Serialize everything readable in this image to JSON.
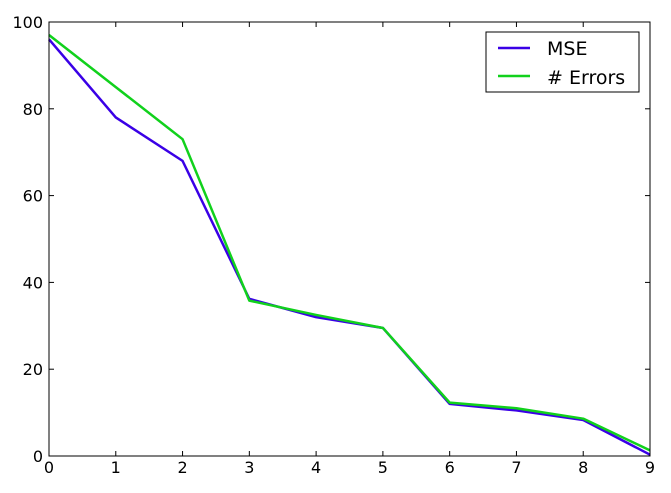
{
  "chart_data": {
    "type": "line",
    "title": "",
    "xlabel": "",
    "ylabel": "",
    "xlim": [
      0,
      9
    ],
    "ylim": [
      0,
      100
    ],
    "x": [
      0,
      1,
      2,
      3,
      4,
      5,
      6,
      7,
      8,
      9
    ],
    "xticks": [
      "0",
      "1",
      "2",
      "3",
      "4",
      "5",
      "6",
      "7",
      "8",
      "9"
    ],
    "yticks": [
      "0",
      "20",
      "40",
      "60",
      "80",
      "100"
    ],
    "grid": false,
    "legend_position": "top-right",
    "series": [
      {
        "name": "MSE",
        "color": "#3a00e6",
        "values": [
          96,
          78,
          68,
          36.2,
          32,
          29.5,
          12,
          10.5,
          8.3,
          0.3
        ]
      },
      {
        "name": "# Errors",
        "color": "#11d11c",
        "values": [
          97,
          85,
          73,
          35.8,
          32.5,
          29.5,
          12.3,
          11,
          8.6,
          1.3
        ]
      }
    ]
  }
}
